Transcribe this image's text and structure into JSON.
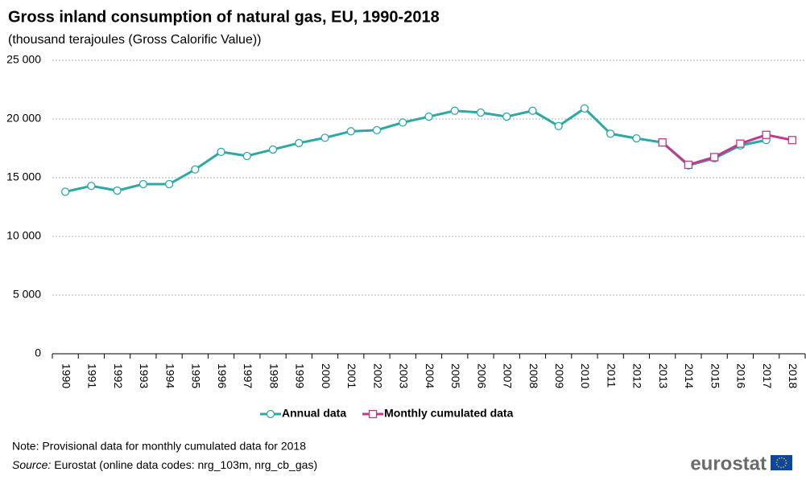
{
  "chart_data": {
    "type": "line",
    "title": "Gross inland consumption of natural gas, EU, 1990-2018",
    "subtitle": "(thousand  terajoules (Gross Calorific Value))",
    "categories": [
      "1990",
      "1991",
      "1992",
      "1993",
      "1994",
      "1995",
      "1996",
      "1997",
      "1998",
      "1999",
      "2000",
      "2001",
      "2002",
      "2003",
      "2004",
      "2005",
      "2006",
      "2007",
      "2008",
      "2009",
      "2010",
      "2011",
      "2012",
      "2013",
      "2014",
      "2015",
      "2016",
      "2017",
      "2018"
    ],
    "series": [
      {
        "name": "Annual data",
        "color": "#2aa9a6",
        "marker": "circle",
        "values": [
          13800,
          14300,
          13900,
          14450,
          14450,
          15700,
          17200,
          16850,
          17400,
          17950,
          18400,
          18950,
          19050,
          19700,
          20200,
          20700,
          20550,
          20200,
          20700,
          19400,
          20900,
          18750,
          18350,
          18000,
          16050,
          16650,
          17750,
          18200,
          null
        ]
      },
      {
        "name": "Monthly cumulated data",
        "color": "#bf3a8e",
        "marker": "square",
        "values": [
          null,
          null,
          null,
          null,
          null,
          null,
          null,
          null,
          null,
          null,
          null,
          null,
          null,
          null,
          null,
          null,
          null,
          null,
          null,
          null,
          null,
          null,
          null,
          18000,
          16100,
          16750,
          17900,
          18650,
          18200
        ]
      }
    ],
    "ylim": [
      0,
      25000
    ],
    "yticks": [
      0,
      {
        "value": 5000,
        "label": "5 000"
      },
      {
        "value": 10000,
        "label": "10 000"
      },
      {
        "value": 15000,
        "label": "15 000"
      },
      {
        "value": 20000,
        "label": "20 000"
      },
      {
        "value": 25000,
        "label": "25 000"
      }
    ],
    "grid": true,
    "legend": "bottom",
    "note": "Note: Provisional data for monthly  cumulated data for 2018",
    "source_label": "Source:",
    "source": "Eurostat (online data codes: nrg_103m, nrg_cb_gas)",
    "logo": "eurostat"
  }
}
